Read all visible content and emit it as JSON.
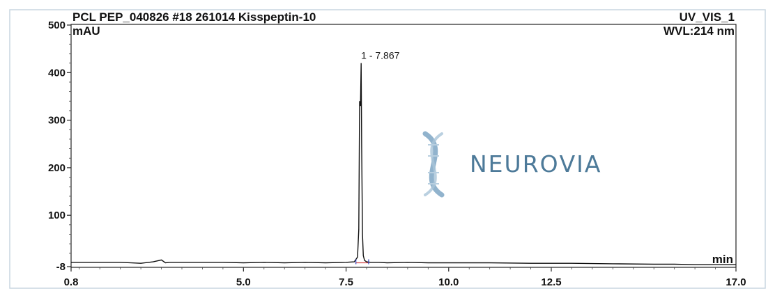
{
  "header": {
    "sample": "PCL PEP_040826 #18  261014 Kisspeptin-10",
    "channel": "UV_VIS_1",
    "wavelength": "WVL:214 nm"
  },
  "watermark": {
    "text": "NEURОVIA",
    "icon": "dna-helix-icon",
    "color": "#4d7a99"
  },
  "chart_data": {
    "type": "line",
    "title": "PCL PEP_040826 #18  261014 Kisspeptin-10",
    "ylabel": "mAU",
    "xlabel": "min",
    "xlim": [
      0.8,
      17.0
    ],
    "ylim": [
      -8,
      500
    ],
    "x_ticks": [
      "0.8",
      "5.0",
      "7.5",
      "10.0",
      "12.5",
      "17.0"
    ],
    "y_ticks": [
      "-8",
      "100",
      "200",
      "300",
      "400",
      "500"
    ],
    "x_tick_values": [
      0.8,
      5.0,
      7.5,
      10.0,
      12.5,
      17.0
    ],
    "y_tick_values": [
      -8,
      100,
      200,
      300,
      400,
      500
    ],
    "peaks": [
      {
        "label": "1 - 7.867",
        "retention_time": 7.867,
        "height": 420
      }
    ],
    "series": [
      {
        "x": [
          0.8,
          1.5,
          2.0,
          2.5,
          2.8,
          3.0,
          3.1,
          3.2,
          3.5,
          4.0,
          4.5,
          5.0,
          5.5,
          6.0,
          6.5,
          7.0,
          7.5,
          7.7,
          7.78,
          7.81,
          7.83,
          7.85,
          7.867,
          7.88,
          7.9,
          7.92,
          7.95,
          8.0,
          8.1,
          8.3,
          8.5,
          9.0,
          9.5,
          10.0,
          11.0,
          12.0,
          13.0,
          14.0,
          15.0,
          15.5,
          16.0,
          16.5,
          17.0
        ],
        "y": [
          1,
          1,
          1,
          -1,
          2,
          6,
          0,
          1,
          1,
          1,
          1,
          0,
          1,
          0,
          1,
          0,
          1,
          2,
          12,
          70,
          340,
          330,
          420,
          250,
          60,
          15,
          5,
          2,
          1,
          1,
          0,
          1,
          0,
          0,
          0,
          -1,
          -1,
          -2,
          -3,
          -3,
          -4,
          -4,
          -4
        ]
      }
    ]
  }
}
